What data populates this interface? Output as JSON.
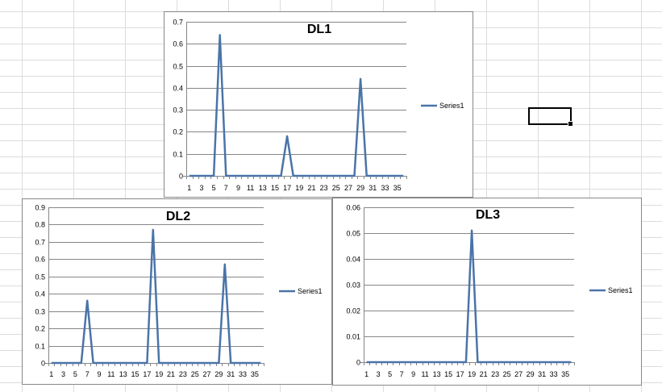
{
  "chart_data": [
    {
      "id": "dl1",
      "type": "line",
      "title": "DL1",
      "xlabel": "",
      "ylabel": "",
      "categories": [
        1,
        2,
        3,
        4,
        5,
        6,
        7,
        8,
        9,
        10,
        11,
        12,
        13,
        14,
        15,
        16,
        17,
        18,
        19,
        20,
        21,
        22,
        23,
        24,
        25,
        26,
        27,
        28,
        29,
        30,
        31,
        32,
        33,
        34,
        35,
        36
      ],
      "x_tick_labels": [
        "1",
        "3",
        "5",
        "7",
        "9",
        "11",
        "13",
        "15",
        "17",
        "19",
        "21",
        "23",
        "25",
        "27",
        "29",
        "31",
        "33",
        "35"
      ],
      "y_ticks": [
        "0",
        "0.1",
        "0.2",
        "0.3",
        "0.4",
        "0.5",
        "0.6",
        "0.7"
      ],
      "ylim": [
        0,
        0.7
      ],
      "grid": true,
      "legend_position": "right",
      "color": "#4a74a8",
      "series": [
        {
          "name": "Series1",
          "values": [
            0,
            0,
            0,
            0,
            0,
            0.64,
            0,
            0,
            0,
            0,
            0,
            0,
            0,
            0,
            0,
            0,
            0.18,
            0,
            0,
            0,
            0,
            0,
            0,
            0,
            0,
            0,
            0,
            0,
            0.44,
            0,
            0,
            0,
            0,
            0,
            0,
            0
          ]
        }
      ]
    },
    {
      "id": "dl2",
      "type": "line",
      "title": "DL2",
      "xlabel": "",
      "ylabel": "",
      "categories": [
        1,
        2,
        3,
        4,
        5,
        6,
        7,
        8,
        9,
        10,
        11,
        12,
        13,
        14,
        15,
        16,
        17,
        18,
        19,
        20,
        21,
        22,
        23,
        24,
        25,
        26,
        27,
        28,
        29,
        30,
        31,
        32,
        33,
        34,
        35,
        36
      ],
      "x_tick_labels": [
        "1",
        "3",
        "5",
        "7",
        "9",
        "11",
        "13",
        "15",
        "17",
        "19",
        "21",
        "23",
        "25",
        "27",
        "29",
        "31",
        "33",
        "35"
      ],
      "y_ticks": [
        "0",
        "0.1",
        "0.2",
        "0.3",
        "0.4",
        "0.5",
        "0.6",
        "0.7",
        "0.8",
        "0.9"
      ],
      "ylim": [
        0,
        0.9
      ],
      "grid": true,
      "legend_position": "right",
      "color": "#4a74a8",
      "series": [
        {
          "name": "Series1",
          "values": [
            0,
            0,
            0,
            0,
            0,
            0,
            0.36,
            0,
            0,
            0,
            0,
            0,
            0,
            0,
            0,
            0,
            0,
            0.77,
            0,
            0,
            0,
            0,
            0,
            0,
            0,
            0,
            0,
            0,
            0,
            0.57,
            0,
            0,
            0,
            0,
            0,
            0
          ]
        }
      ]
    },
    {
      "id": "dl3",
      "type": "line",
      "title": "DL3",
      "xlabel": "",
      "ylabel": "",
      "categories": [
        1,
        2,
        3,
        4,
        5,
        6,
        7,
        8,
        9,
        10,
        11,
        12,
        13,
        14,
        15,
        16,
        17,
        18,
        19,
        20,
        21,
        22,
        23,
        24,
        25,
        26,
        27,
        28,
        29,
        30,
        31,
        32,
        33,
        34,
        35,
        36
      ],
      "x_tick_labels": [
        "1",
        "3",
        "5",
        "7",
        "9",
        "11",
        "13",
        "15",
        "17",
        "19",
        "21",
        "23",
        "25",
        "27",
        "29",
        "31",
        "33",
        "35"
      ],
      "y_ticks": [
        "0",
        "0.01",
        "0.02",
        "0.03",
        "0.04",
        "0.05",
        "0.06"
      ],
      "ylim": [
        0,
        0.06
      ],
      "grid": true,
      "legend_position": "right",
      "color": "#4a74a8",
      "series": [
        {
          "name": "Series1",
          "values": [
            0,
            0,
            0,
            0,
            0,
            0,
            0,
            0,
            0,
            0,
            0,
            0,
            0,
            0,
            0,
            0,
            0,
            0,
            0.051,
            0,
            0,
            0,
            0,
            0,
            0,
            0,
            0,
            0,
            0,
            0,
            0,
            0,
            0,
            0,
            0,
            0
          ]
        }
      ]
    }
  ]
}
